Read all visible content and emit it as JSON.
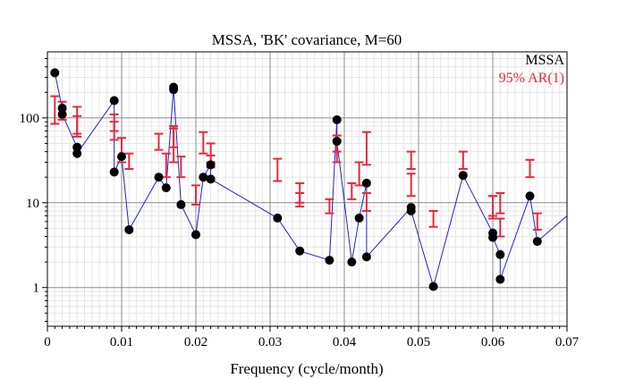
{
  "chart_data": {
    "type": "scatter",
    "title": "MSSA, 'BK' covariance, M=60",
    "xlabel": "Frequency (cycle/month)",
    "ylabel": "",
    "x_scale": "linear",
    "y_scale": "log",
    "xlim": [
      0,
      0.07
    ],
    "ylim": [
      0.35,
      600
    ],
    "x_ticks": [
      "0",
      "0.01",
      "0.02",
      "0.03",
      "0.04",
      "0.05",
      "0.06",
      "0.07"
    ],
    "y_ticks": [
      "1",
      "10",
      "100"
    ],
    "grid": true,
    "legend_position": "top-right",
    "colors": {
      "series_line": "#2222cc",
      "points": "#000000",
      "bars": "#e8283c"
    },
    "series": [
      {
        "name": "MSSA",
        "x": [
          0.001,
          0.002,
          0.002,
          0.004,
          0.004,
          0.009,
          0.009,
          0.01,
          0.011,
          0.015,
          0.016,
          0.017,
          0.017,
          0.018,
          0.02,
          0.021,
          0.022,
          0.022,
          0.031,
          0.034,
          0.038,
          0.039,
          0.039,
          0.041,
          0.042,
          0.043,
          0.043,
          0.049,
          0.049,
          0.052,
          0.056,
          0.06,
          0.06,
          0.061,
          0.061,
          0.065,
          0.066,
          0.07
        ],
        "y": [
          340,
          130,
          110,
          45,
          38,
          160,
          23,
          35,
          4.8,
          20,
          15,
          230,
          215,
          9.5,
          4.2,
          20,
          28,
          19,
          6.6,
          2.7,
          2.1,
          95,
          53,
          2.0,
          6.6,
          17,
          2.3,
          8.8,
          8.0,
          1.03,
          21,
          4.4,
          3.9,
          2.45,
          1.25,
          12,
          3.5,
          7
        ]
      },
      {
        "name": "95% AR(1)",
        "type": "errorbar",
        "x": [
          0.001,
          0.002,
          0.004,
          0.004,
          0.009,
          0.009,
          0.01,
          0.011,
          0.015,
          0.016,
          0.017,
          0.017,
          0.018,
          0.02,
          0.021,
          0.022,
          0.022,
          0.031,
          0.034,
          0.034,
          0.038,
          0.039,
          0.039,
          0.041,
          0.042,
          0.043,
          0.043,
          0.049,
          0.049,
          0.052,
          0.056,
          0.06,
          0.06,
          0.061,
          0.061,
          0.065,
          0.066
        ],
        "low": [
          85,
          95,
          60,
          65,
          55,
          70,
          30,
          25,
          42,
          20,
          45,
          30,
          20,
          9.5,
          38,
          30,
          26,
          18,
          10,
          9,
          7.5,
          30,
          40,
          11,
          16,
          28,
          8,
          25,
          12,
          5.2,
          25,
          6.5,
          7,
          4,
          7.5,
          20,
          4.8
        ],
        "high": [
          180,
          155,
          135,
          105,
          110,
          90,
          58,
          38,
          65,
          38,
          80,
          75,
          35,
          16,
          68,
          50,
          36,
          33,
          17,
          13,
          11,
          55,
          62,
          17,
          30,
          68,
          13,
          40,
          22,
          8,
          40,
          12,
          12,
          6.5,
          13,
          32,
          7.5
        ]
      }
    ]
  }
}
